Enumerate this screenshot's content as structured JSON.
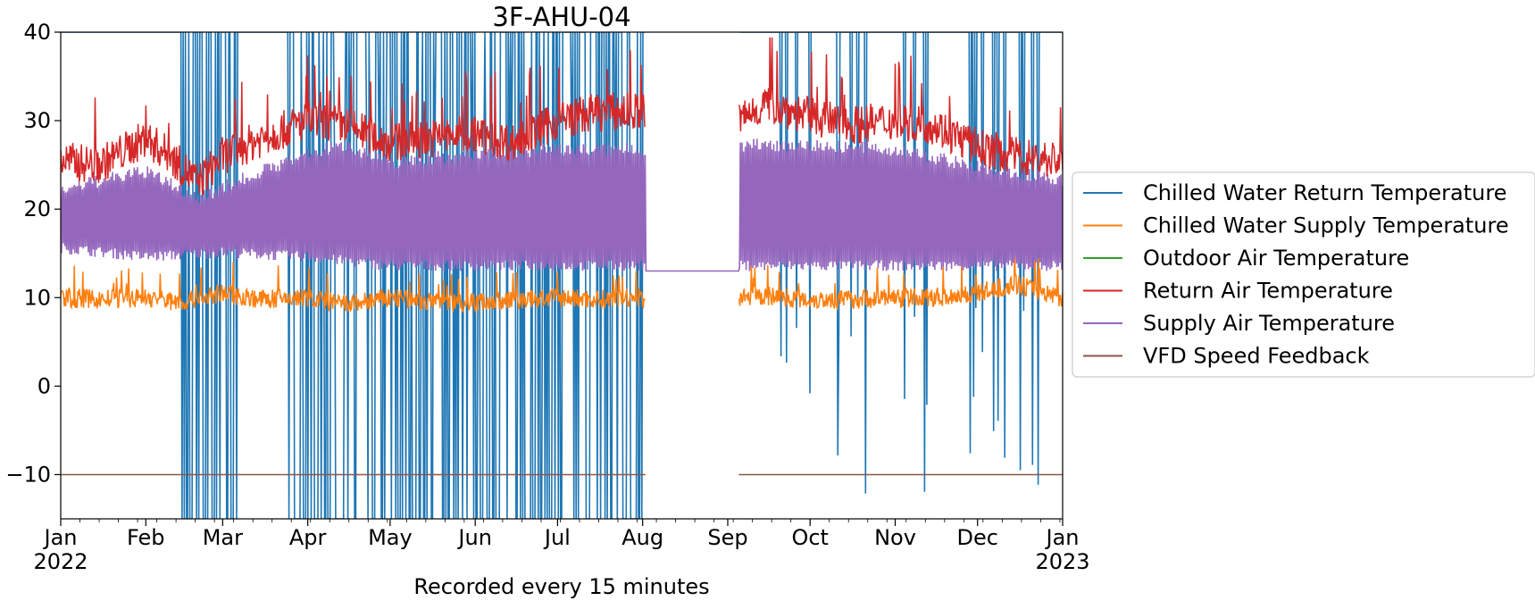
{
  "chart_data": {
    "type": "line",
    "title": "3F-AHU-04",
    "xlabel": "Recorded every 15 minutes",
    "ylabel": "",
    "ylim": [
      -15,
      40
    ],
    "yticks": [
      -10,
      0,
      10,
      20,
      30,
      40
    ],
    "ytick_labels": [
      "−10",
      "0",
      "10",
      "20",
      "30",
      "40"
    ],
    "xlim": [
      "2022-01-01",
      "2023-01-01"
    ],
    "xticks": [
      {
        "date": "2022-01-01",
        "label": "Jan",
        "sublabel": "2022"
      },
      {
        "date": "2022-02-01",
        "label": "Feb",
        "sublabel": ""
      },
      {
        "date": "2022-03-01",
        "label": "Mar",
        "sublabel": ""
      },
      {
        "date": "2022-04-01",
        "label": "Apr",
        "sublabel": ""
      },
      {
        "date": "2022-05-01",
        "label": "May",
        "sublabel": ""
      },
      {
        "date": "2022-06-01",
        "label": "Jun",
        "sublabel": ""
      },
      {
        "date": "2022-07-01",
        "label": "Jul",
        "sublabel": ""
      },
      {
        "date": "2022-08-01",
        "label": "Aug",
        "sublabel": ""
      },
      {
        "date": "2022-09-01",
        "label": "Sep",
        "sublabel": ""
      },
      {
        "date": "2022-10-01",
        "label": "Oct",
        "sublabel": ""
      },
      {
        "date": "2022-11-01",
        "label": "Nov",
        "sublabel": ""
      },
      {
        "date": "2022-12-01",
        "label": "Dec",
        "sublabel": ""
      },
      {
        "date": "2023-01-01",
        "label": "Jan",
        "sublabel": "2023"
      }
    ],
    "grid": false,
    "legend_position": "center-right outside",
    "data_gap": [
      "2022-08-02",
      "2022-09-05"
    ],
    "series": [
      {
        "name": "Chilled Water Return Temperature",
        "color": "#1f77b4",
        "description_points": [
          {
            "x": "2022-01-01",
            "y": 40
          },
          {
            "x": "2022-02-15",
            "y": 40
          },
          {
            "x": "2022-02-16",
            "y": -15
          },
          {
            "x": "2022-03-05",
            "y": -15
          },
          {
            "x": "2022-03-25",
            "y": 40
          },
          {
            "x": "2022-05-01",
            "y": -15
          },
          {
            "x": "2022-06-15",
            "y": -15
          },
          {
            "x": "2022-07-20",
            "y": -15
          },
          {
            "x": "2022-08-01",
            "y": 40
          },
          {
            "x": "2022-09-22",
            "y": -15
          },
          {
            "x": "2022-10-30",
            "y": 40
          },
          {
            "x": "2022-11-30",
            "y": 40
          },
          {
            "x": "2022-12-15",
            "y": -15
          },
          {
            "x": "2022-12-20",
            "y": 29.5
          }
        ]
      },
      {
        "name": "Chilled Water Supply Temperature",
        "color": "#ff7f0e",
        "points": [
          {
            "x": "2022-01-01",
            "y": 10
          },
          {
            "x": "2022-01-15",
            "y": 9.8
          },
          {
            "x": "2022-02-01",
            "y": 10
          },
          {
            "x": "2022-02-15",
            "y": 9.5
          },
          {
            "x": "2022-03-01",
            "y": 10.5
          },
          {
            "x": "2022-03-15",
            "y": 9.8
          },
          {
            "x": "2022-04-01",
            "y": 10
          },
          {
            "x": "2022-04-15",
            "y": 9.2
          },
          {
            "x": "2022-05-01",
            "y": 10
          },
          {
            "x": "2022-05-15",
            "y": 9.5
          },
          {
            "x": "2022-06-01",
            "y": 9.5
          },
          {
            "x": "2022-06-15",
            "y": 9.7
          },
          {
            "x": "2022-07-01",
            "y": 10
          },
          {
            "x": "2022-07-15",
            "y": 9.8
          },
          {
            "x": "2022-08-02",
            "y": 10
          },
          {
            "x": "2022-09-05",
            "y": 10
          },
          {
            "x": "2022-09-15",
            "y": 10.2
          },
          {
            "x": "2022-10-01",
            "y": 9.8
          },
          {
            "x": "2022-10-15",
            "y": 9.8
          },
          {
            "x": "2022-11-01",
            "y": 10
          },
          {
            "x": "2022-11-15",
            "y": 10
          },
          {
            "x": "2022-12-01",
            "y": 10.5
          },
          {
            "x": "2022-12-15",
            "y": 11.5
          },
          {
            "x": "2023-01-01",
            "y": 10
          }
        ]
      },
      {
        "name": "Outdoor Air Temperature",
        "color": "#2ca02c",
        "points": []
      },
      {
        "name": "Return Air Temperature",
        "color": "#d62728",
        "points": [
          {
            "x": "2022-01-01",
            "y": 25.5
          },
          {
            "x": "2022-01-15",
            "y": 25
          },
          {
            "x": "2022-02-01",
            "y": 28
          },
          {
            "x": "2022-02-10",
            "y": 26
          },
          {
            "x": "2022-02-20",
            "y": 23
          },
          {
            "x": "2022-03-01",
            "y": 26
          },
          {
            "x": "2022-03-15",
            "y": 28
          },
          {
            "x": "2022-04-01",
            "y": 30
          },
          {
            "x": "2022-04-15",
            "y": 29.5
          },
          {
            "x": "2022-05-01",
            "y": 27.5
          },
          {
            "x": "2022-05-15",
            "y": 28
          },
          {
            "x": "2022-06-01",
            "y": 28.5
          },
          {
            "x": "2022-06-15",
            "y": 27.5
          },
          {
            "x": "2022-07-01",
            "y": 30
          },
          {
            "x": "2022-07-15",
            "y": 31
          },
          {
            "x": "2022-08-02",
            "y": 31
          },
          {
            "x": "2022-09-05",
            "y": 30
          },
          {
            "x": "2022-09-15",
            "y": 32
          },
          {
            "x": "2022-10-01",
            "y": 30.5
          },
          {
            "x": "2022-10-15",
            "y": 29.5
          },
          {
            "x": "2022-11-01",
            "y": 30
          },
          {
            "x": "2022-11-15",
            "y": 29.5
          },
          {
            "x": "2022-12-01",
            "y": 27
          },
          {
            "x": "2022-12-15",
            "y": 26
          },
          {
            "x": "2023-01-01",
            "y": 25.5
          }
        ]
      },
      {
        "name": "Supply Air Temperature",
        "color": "#9467bd",
        "upper_points": [
          {
            "x": "2022-01-01",
            "y": 23
          },
          {
            "x": "2022-02-01",
            "y": 25
          },
          {
            "x": "2022-02-20",
            "y": 22
          },
          {
            "x": "2022-03-15",
            "y": 25
          },
          {
            "x": "2022-04-01",
            "y": 27
          },
          {
            "x": "2022-04-15",
            "y": 28
          },
          {
            "x": "2022-05-01",
            "y": 26
          },
          {
            "x": "2022-06-01",
            "y": 27
          },
          {
            "x": "2022-07-01",
            "y": 27.5
          },
          {
            "x": "2022-08-02",
            "y": 27.5
          },
          {
            "x": "2022-09-05",
            "y": 28
          },
          {
            "x": "2022-10-01",
            "y": 28
          },
          {
            "x": "2022-11-01",
            "y": 27.5
          },
          {
            "x": "2022-12-01",
            "y": 25.5
          },
          {
            "x": "2023-01-01",
            "y": 24
          }
        ],
        "lower_points": [
          {
            "x": "2022-01-01",
            "y": 15
          },
          {
            "x": "2022-02-01",
            "y": 14
          },
          {
            "x": "2022-03-01",
            "y": 14.5
          },
          {
            "x": "2022-04-01",
            "y": 14
          },
          {
            "x": "2022-05-01",
            "y": 13
          },
          {
            "x": "2022-06-01",
            "y": 13
          },
          {
            "x": "2022-07-01",
            "y": 13
          },
          {
            "x": "2022-08-02",
            "y": 13
          },
          {
            "x": "2022-09-05",
            "y": 13
          },
          {
            "x": "2022-10-01",
            "y": 13
          },
          {
            "x": "2022-11-01",
            "y": 13
          },
          {
            "x": "2022-12-01",
            "y": 13
          },
          {
            "x": "2023-01-01",
            "y": 13
          }
        ],
        "gap_value": 13
      },
      {
        "name": "VFD Speed Feedback",
        "color": "#8c564b",
        "points": [
          {
            "x": "2022-01-01",
            "y": -10
          },
          {
            "x": "2022-08-02",
            "y": -10
          },
          {
            "x": "2022-09-05",
            "y": -10
          },
          {
            "x": "2023-01-01",
            "y": -10
          }
        ]
      }
    ]
  }
}
